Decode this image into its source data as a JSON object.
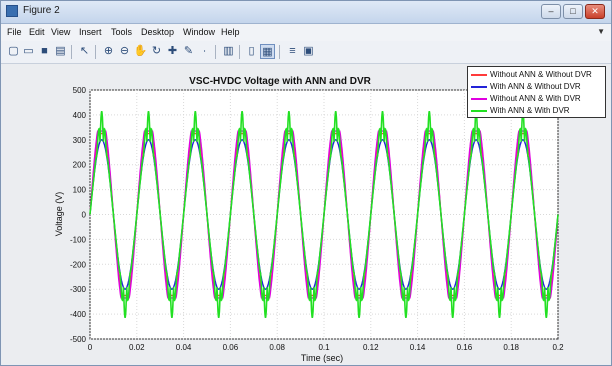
{
  "window": {
    "title": "Figure 2",
    "controls": [
      "–",
      "□",
      "✕"
    ]
  },
  "menu": {
    "items": [
      "File",
      "Edit",
      "View",
      "Insert",
      "Tools",
      "Desktop",
      "Window",
      "Help"
    ]
  },
  "toolbar": {
    "icons": [
      "new-figure-icon",
      "open-file-icon",
      "save-icon",
      "print-icon",
      "pointer-icon",
      "zoom-in-icon",
      "zoom-out-icon",
      "pan-icon",
      "rotate-icon",
      "data-cursor-icon",
      "brush-icon",
      "link-icon",
      "colorbar-icon",
      "legend-icon",
      "hide-plot-tools-icon",
      "show-plot-tools-icon"
    ]
  },
  "chart_data": {
    "type": "line",
    "title": "VSC-HVDC Voltage with ANN and DVR",
    "xlabel": "Time (sec)",
    "ylabel": "Voltage (V)",
    "xlim": [
      0,
      0.2
    ],
    "ylim": [
      -500,
      500
    ],
    "xticks": [
      "0",
      "0.02",
      "0.04",
      "0.06",
      "0.08",
      "0.1",
      "0.12",
      "0.14",
      "0.16",
      "0.18",
      "0.2"
    ],
    "yticks": [
      "500",
      "400",
      "300",
      "200",
      "100",
      "0",
      "-100",
      "-200",
      "-300",
      "-400",
      "-500"
    ],
    "grid": true,
    "legend_position": "top-right",
    "frequency_hz": 50,
    "series": [
      {
        "name": "Without ANN & Without DVR",
        "color": "#ff3b3b",
        "amplitude": 325,
        "ripple": 0
      },
      {
        "name": "With ANN & Without DVR",
        "color": "#2323d8",
        "amplitude": 300,
        "ripple": 0
      },
      {
        "name": "Without ANN & With DVR",
        "color": "#e000e0",
        "amplitude": 335,
        "ripple": 0
      },
      {
        "name": "With ANN & With DVR",
        "color": "#22e022",
        "amplitude": 300,
        "ripple": 115
      }
    ]
  }
}
